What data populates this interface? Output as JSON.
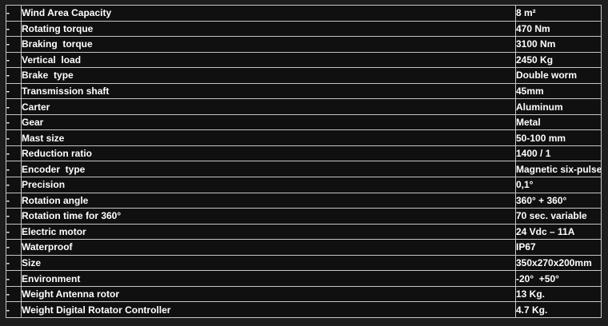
{
  "page": {
    "background_color": "#1d1d1d"
  },
  "table": {
    "name": "rotator-specifications-table",
    "bullet": "-",
    "border_color": "#c6c6c6",
    "cell_background": "#101010",
    "text_color": "#ffffff",
    "rows": [
      {
        "label": "Wind Area Capacity",
        "value": "8 m²"
      },
      {
        "label": "Rotating torque",
        "value": "470 Nm"
      },
      {
        "label": "Braking  torque",
        "value": "3100 Nm"
      },
      {
        "label": "Vertical  load",
        "value": "2450 Kg"
      },
      {
        "label": "Brake  type",
        "value": "Double worm"
      },
      {
        "label": "Transmission shaft",
        "value": "45mm"
      },
      {
        "label": "Carter",
        "value": "Aluminum"
      },
      {
        "label": "Gear",
        "value": "Metal"
      },
      {
        "label": "Mast size",
        "value": "50-100 mm"
      },
      {
        "label": "Reduction ratio",
        "value": "1400 / 1"
      },
      {
        "label": "Encoder  type",
        "value": "Magnetic six-pulse"
      },
      {
        "label": "Precision",
        "value": "0,1°"
      },
      {
        "label": "Rotation angle",
        "value": "360° + 360°"
      },
      {
        "label": "Rotation time for 360°",
        "value": "70 sec. variable"
      },
      {
        "label": "Electric motor",
        "value": "24 Vdc – 11A"
      },
      {
        "label": "Waterproof",
        "value": "IP67"
      },
      {
        "label": "Size",
        "value": "350x270x200mm"
      },
      {
        "label": "Environment",
        "value": "-20°  +50°"
      },
      {
        "label": "Weight Antenna rotor",
        "value": "13 Kg."
      },
      {
        "label": "Weight Digital Rotator Controller",
        "value": "4.7 Kg."
      }
    ]
  }
}
